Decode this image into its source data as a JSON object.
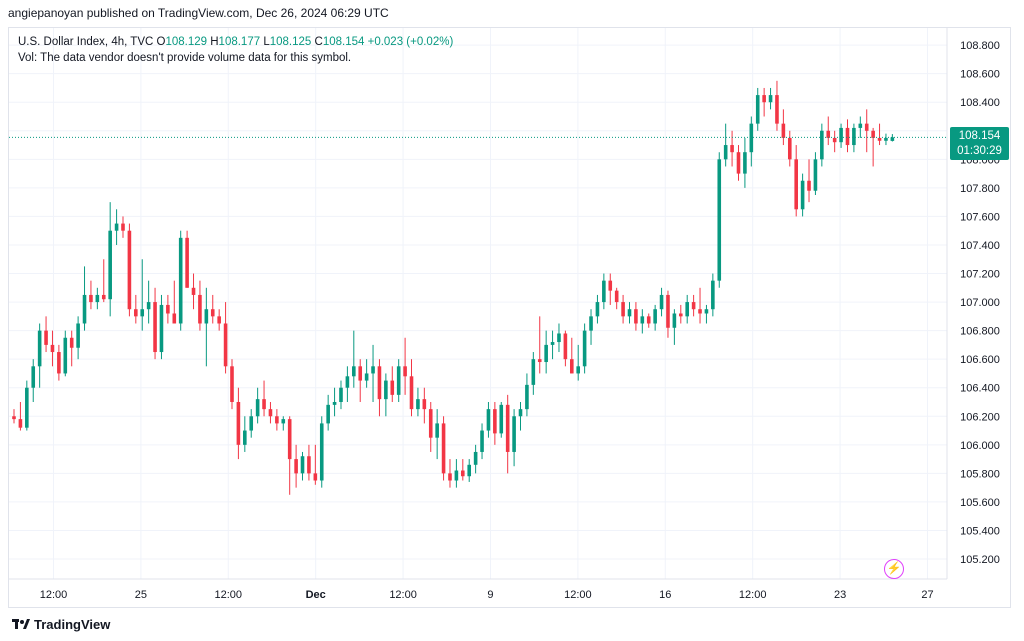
{
  "header": {
    "published_by": "angiepanoyan published on TradingView.com, Dec 26, 2024 06:29 UTC"
  },
  "legend": {
    "symbol": "U.S. Dollar Index, 4h, TVC",
    "o_label": "O",
    "o_value": "108.129",
    "h_label": "H",
    "h_value": "108.177",
    "l_label": "L",
    "l_value": "108.125",
    "c_label": "C",
    "c_value": "108.154",
    "change": "+0.023 (+0.02%)",
    "vol_note": "Vol: The data vendor doesn't provide volume data for this symbol."
  },
  "last_price": {
    "price": "108.154",
    "countdown": "01:30:29"
  },
  "footer": {
    "brand": "TradingView"
  },
  "colors": {
    "up": "#089981",
    "down": "#f23645",
    "grid": "#f0f3fa",
    "axis_text": "#131722"
  },
  "icons": {
    "flash": "lightning-icon",
    "logo": "tradingview-logo-icon"
  },
  "chart_data": {
    "type": "candlestick",
    "ylim": [
      105.06,
      108.92
    ],
    "y_ticks": [
      105.2,
      105.4,
      105.6,
      105.8,
      106.0,
      106.2,
      106.4,
      106.6,
      106.8,
      107.0,
      107.2,
      107.4,
      107.6,
      107.8,
      108.0,
      108.2,
      108.4,
      108.6,
      108.8
    ],
    "y_tick_labels": [
      "105.200",
      "105.400",
      "105.600",
      "105.800",
      "106.000",
      "106.200",
      "106.400",
      "106.600",
      "106.800",
      "107.000",
      "107.200",
      "107.400",
      "107.600",
      "107.800",
      "108.000",
      "108.200",
      "108.400",
      "108.600",
      "108.800"
    ],
    "x_ticks": [
      {
        "label": "12:00",
        "bar": 4
      },
      {
        "label": "25",
        "bar": 24
      },
      {
        "label": "12:00",
        "bar": 44
      },
      {
        "label": "Dec",
        "bar": 64
      },
      {
        "label": "12:00",
        "bar": 84
      },
      {
        "label": "9",
        "bar": 104
      },
      {
        "label": "12:00",
        "bar": 124
      },
      {
        "label": "16",
        "bar": 144
      },
      {
        "label": "12:00",
        "bar": 164
      },
      {
        "label": "23",
        "bar": 184
      },
      {
        "label": "27",
        "bar": 204
      }
    ],
    "last_close": 108.154,
    "bar_count": 201,
    "candles": [
      [
        106.2,
        106.25,
        106.15,
        106.18
      ],
      [
        106.18,
        106.3,
        106.1,
        106.12
      ],
      [
        106.12,
        106.45,
        106.1,
        106.4
      ],
      [
        106.4,
        106.6,
        106.3,
        106.55
      ],
      [
        106.55,
        106.85,
        106.4,
        106.8
      ],
      [
        106.8,
        106.9,
        106.65,
        106.7
      ],
      [
        106.7,
        106.8,
        106.55,
        106.65
      ],
      [
        106.65,
        106.7,
        106.45,
        106.5
      ],
      [
        106.5,
        106.8,
        106.48,
        106.75
      ],
      [
        106.75,
        106.8,
        106.55,
        106.68
      ],
      [
        106.68,
        106.9,
        106.6,
        106.85
      ],
      [
        106.85,
        107.25,
        106.8,
        107.05
      ],
      [
        107.05,
        107.15,
        106.95,
        107.0
      ],
      [
        107.0,
        107.1,
        106.95,
        107.05
      ],
      [
        107.05,
        107.3,
        107.0,
        107.02
      ],
      [
        107.02,
        107.7,
        106.9,
        107.5
      ],
      [
        107.5,
        107.65,
        107.4,
        107.55
      ],
      [
        107.55,
        107.6,
        107.45,
        107.5
      ],
      [
        107.5,
        107.55,
        106.9,
        106.95
      ],
      [
        106.95,
        107.05,
        106.85,
        106.9
      ],
      [
        106.9,
        107.3,
        106.8,
        106.95
      ],
      [
        106.95,
        107.15,
        106.85,
        107.0
      ],
      [
        107.0,
        107.1,
        106.6,
        106.65
      ],
      [
        106.65,
        107.05,
        106.6,
        106.98
      ],
      [
        106.98,
        107.05,
        106.85,
        106.92
      ],
      [
        106.92,
        107.15,
        106.85,
        106.85
      ],
      [
        106.85,
        107.5,
        106.8,
        107.45
      ],
      [
        107.45,
        107.5,
        107.1,
        107.1
      ],
      [
        107.1,
        107.2,
        106.95,
        107.05
      ],
      [
        107.05,
        107.15,
        106.8,
        106.85
      ],
      [
        106.85,
        107.1,
        106.55,
        106.95
      ],
      [
        106.95,
        107.05,
        106.85,
        106.9
      ],
      [
        106.9,
        106.95,
        106.8,
        106.85
      ],
      [
        106.85,
        107.0,
        106.5,
        106.55
      ],
      [
        106.55,
        106.6,
        106.25,
        106.3
      ],
      [
        106.3,
        106.4,
        105.9,
        106.0
      ],
      [
        106.0,
        106.2,
        105.95,
        106.1
      ],
      [
        106.1,
        106.25,
        106.05,
        106.2
      ],
      [
        106.2,
        106.4,
        106.15,
        106.32
      ],
      [
        106.32,
        106.45,
        106.2,
        106.25
      ],
      [
        106.25,
        106.3,
        106.15,
        106.2
      ],
      [
        106.2,
        106.25,
        106.1,
        106.15
      ],
      [
        106.15,
        106.2,
        106.1,
        106.18
      ],
      [
        106.18,
        106.2,
        105.65,
        105.9
      ],
      [
        105.9,
        106.0,
        105.7,
        105.8
      ],
      [
        105.8,
        105.95,
        105.75,
        105.92
      ],
      [
        105.92,
        106.0,
        105.75,
        105.8
      ],
      [
        105.8,
        106.0,
        105.72,
        105.75
      ],
      [
        105.75,
        106.2,
        105.7,
        106.15
      ],
      [
        106.15,
        106.35,
        106.1,
        106.28
      ],
      [
        106.28,
        106.4,
        106.2,
        106.3
      ],
      [
        106.3,
        106.45,
        106.25,
        106.4
      ],
      [
        106.4,
        106.55,
        106.3,
        106.48
      ],
      [
        106.48,
        106.8,
        106.4,
        106.55
      ],
      [
        106.55,
        106.6,
        106.3,
        106.45
      ],
      [
        106.45,
        106.6,
        106.4,
        106.5
      ],
      [
        106.5,
        106.7,
        106.3,
        106.55
      ],
      [
        106.55,
        106.6,
        106.2,
        106.32
      ],
      [
        106.32,
        106.5,
        106.2,
        106.45
      ],
      [
        106.45,
        106.55,
        106.3,
        106.35
      ],
      [
        106.35,
        106.6,
        106.3,
        106.55
      ],
      [
        106.55,
        106.75,
        106.35,
        106.48
      ],
      [
        106.48,
        106.6,
        106.2,
        106.25
      ],
      [
        106.25,
        106.4,
        106.2,
        106.32
      ],
      [
        106.32,
        106.4,
        106.15,
        106.25
      ],
      [
        106.25,
        106.3,
        105.95,
        106.05
      ],
      [
        106.05,
        106.25,
        105.9,
        106.15
      ],
      [
        106.15,
        106.2,
        105.75,
        105.8
      ],
      [
        105.8,
        105.9,
        105.7,
        105.75
      ],
      [
        105.75,
        105.9,
        105.7,
        105.82
      ],
      [
        105.82,
        105.9,
        105.75,
        105.78
      ],
      [
        105.78,
        105.9,
        105.74,
        105.86
      ],
      [
        105.86,
        106.0,
        105.8,
        105.95
      ],
      [
        105.95,
        106.15,
        105.9,
        106.1
      ],
      [
        106.1,
        106.3,
        106.05,
        106.25
      ],
      [
        106.25,
        106.3,
        106.0,
        106.08
      ],
      [
        106.08,
        106.3,
        106.05,
        106.28
      ],
      [
        106.28,
        106.35,
        105.8,
        105.95
      ],
      [
        105.95,
        106.25,
        105.85,
        106.2
      ],
      [
        106.2,
        106.3,
        106.1,
        106.25
      ],
      [
        106.25,
        106.5,
        106.2,
        106.42
      ],
      [
        106.42,
        106.65,
        106.35,
        106.6
      ],
      [
        106.6,
        106.9,
        106.5,
        106.58
      ],
      [
        106.58,
        106.8,
        106.5,
        106.7
      ],
      [
        106.7,
        106.8,
        106.6,
        106.72
      ],
      [
        106.72,
        106.85,
        106.65,
        106.78
      ],
      [
        106.78,
        106.8,
        106.55,
        106.6
      ],
      [
        106.6,
        106.75,
        106.5,
        106.5
      ],
      [
        106.5,
        106.7,
        106.45,
        106.55
      ],
      [
        106.55,
        106.85,
        106.5,
        106.8
      ],
      [
        106.8,
        106.95,
        106.7,
        106.9
      ],
      [
        106.9,
        107.05,
        106.85,
        107.0
      ],
      [
        107.0,
        107.2,
        106.95,
        107.15
      ],
      [
        107.15,
        107.2,
        106.98,
        107.08
      ],
      [
        107.08,
        107.1,
        106.95,
        107.0
      ],
      [
        107.0,
        107.05,
        106.85,
        106.9
      ],
      [
        106.9,
        107.0,
        106.85,
        106.95
      ],
      [
        106.95,
        107.0,
        106.8,
        106.85
      ],
      [
        106.85,
        106.95,
        106.78,
        106.9
      ],
      [
        106.9,
        106.92,
        106.82,
        106.85
      ],
      [
        106.85,
        106.98,
        106.8,
        106.95
      ],
      [
        106.95,
        107.1,
        106.9,
        107.05
      ],
      [
        107.05,
        107.08,
        106.75,
        106.82
      ],
      [
        106.82,
        106.95,
        106.7,
        106.92
      ],
      [
        106.92,
        106.98,
        106.85,
        106.9
      ],
      [
        106.9,
        107.05,
        106.85,
        107.0
      ],
      [
        107.0,
        107.05,
        106.9,
        106.95
      ],
      [
        106.95,
        107.1,
        106.85,
        106.92
      ],
      [
        106.92,
        106.98,
        106.85,
        106.95
      ],
      [
        106.95,
        107.2,
        106.9,
        107.15
      ],
      [
        107.15,
        108.05,
        107.1,
        108.0
      ],
      [
        108.0,
        108.25,
        107.95,
        108.1
      ],
      [
        108.1,
        108.2,
        107.95,
        108.05
      ],
      [
        108.05,
        108.1,
        107.85,
        107.9
      ],
      [
        107.9,
        108.15,
        107.8,
        108.05
      ],
      [
        108.05,
        108.3,
        107.95,
        108.25
      ],
      [
        108.25,
        108.5,
        108.2,
        108.45
      ],
      [
        108.45,
        108.5,
        108.3,
        108.4
      ],
      [
        108.4,
        108.5,
        108.35,
        108.45
      ],
      [
        108.45,
        108.55,
        108.2,
        108.25
      ],
      [
        108.25,
        108.35,
        108.1,
        108.15
      ],
      [
        108.15,
        108.2,
        107.95,
        108.0
      ],
      [
        108.0,
        108.1,
        107.6,
        107.65
      ],
      [
        107.65,
        107.9,
        107.6,
        107.85
      ],
      [
        107.85,
        108.0,
        107.7,
        107.78
      ],
      [
        107.78,
        108.05,
        107.75,
        108.0
      ],
      [
        108.0,
        108.25,
        107.95,
        108.2
      ],
      [
        108.2,
        108.3,
        108.1,
        108.15
      ],
      [
        108.15,
        108.2,
        108.05,
        108.12
      ],
      [
        108.12,
        108.25,
        108.08,
        108.22
      ],
      [
        108.22,
        108.28,
        108.05,
        108.1
      ],
      [
        108.1,
        108.25,
        108.05,
        108.22
      ],
      [
        108.22,
        108.3,
        108.15,
        108.25
      ],
      [
        108.25,
        108.35,
        108.05,
        108.2
      ],
      [
        108.2,
        108.22,
        107.95,
        108.15
      ],
      [
        108.15,
        108.25,
        108.1,
        108.13
      ],
      [
        108.13,
        108.18,
        108.1,
        108.15
      ],
      [
        108.129,
        108.177,
        108.125,
        108.154
      ]
    ],
    "candle_bar_index_map": "candles fill bars 0..143 placed evenly; see script"
  }
}
